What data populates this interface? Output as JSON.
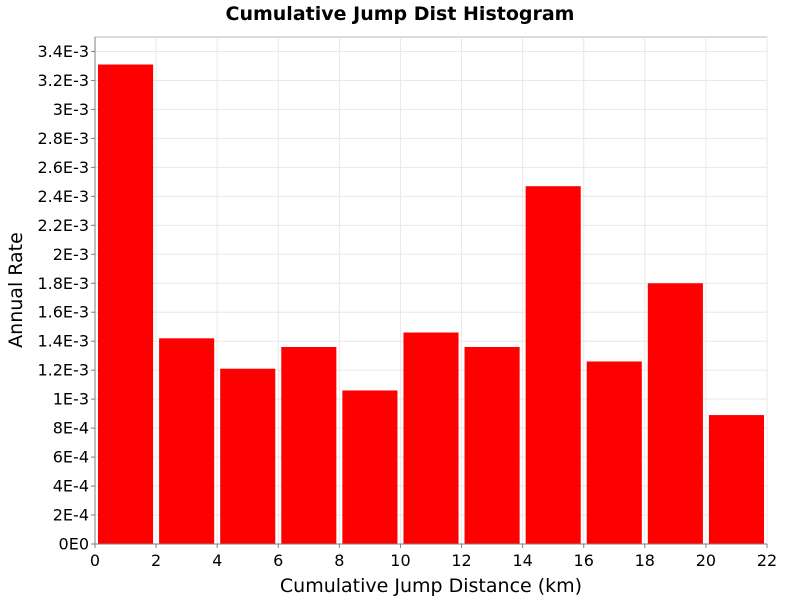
{
  "chart_data": {
    "type": "bar",
    "title": "Cumulative Jump Dist Histogram",
    "xlabel": "Cumulative Jump Distance (km)",
    "ylabel": "Annual Rate",
    "xlim": [
      0,
      22
    ],
    "ylim": [
      0,
      0.0035
    ],
    "x_ticks": [
      "0",
      "2",
      "4",
      "6",
      "8",
      "10",
      "12",
      "14",
      "16",
      "18",
      "20",
      "22"
    ],
    "x_tick_values": [
      0,
      2,
      4,
      6,
      8,
      10,
      12,
      14,
      16,
      18,
      20,
      22
    ],
    "y_ticks": [
      "0E0",
      "2E-4",
      "4E-4",
      "6E-4",
      "8E-4",
      "1E-3",
      "1.2E-3",
      "1.4E-3",
      "1.6E-3",
      "1.8E-3",
      "2E-3",
      "2.2E-3",
      "2.4E-3",
      "2.6E-3",
      "2.8E-3",
      "3E-3",
      "3.2E-3",
      "3.4E-3"
    ],
    "y_tick_values": [
      0,
      0.0002,
      0.0004,
      0.0006,
      0.0008,
      0.001,
      0.0012,
      0.0014,
      0.0016,
      0.0018,
      0.002,
      0.0022,
      0.0024,
      0.0026,
      0.0028,
      0.003,
      0.0032,
      0.0034
    ],
    "bin_edges": [
      0,
      2,
      4,
      6,
      8,
      10,
      12,
      14,
      16,
      18,
      20,
      22
    ],
    "values": [
      0.00331,
      0.00142,
      0.00121,
      0.00136,
      0.00106,
      0.00146,
      0.00136,
      0.00247,
      0.00126,
      0.0018,
      0.00089
    ],
    "bar_color": "#ff0000",
    "grid": true,
    "legend": "none"
  }
}
